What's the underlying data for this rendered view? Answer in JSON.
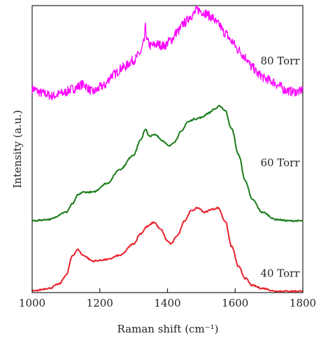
{
  "chart_data": {
    "type": "line",
    "xlabel": "Raman shift (cm⁻¹)",
    "ylabel": "Intensity (a.u.)",
    "xlim": [
      1000,
      1800
    ],
    "ylim": [
      0,
      100
    ],
    "xticks": [
      1000,
      1200,
      1400,
      1600,
      1800
    ],
    "xtick_labels": [
      "1000",
      "1200",
      "1400",
      "1600",
      "1800"
    ],
    "yticks_shown": false,
    "grid": false,
    "series": [
      {
        "name": "80 Torr",
        "color": "#ff00ff",
        "noisy": true,
        "label_at": [
          1650,
          79.5
        ],
        "x": [
          1000,
          1030,
          1060,
          1090,
          1120,
          1150,
          1180,
          1210,
          1240,
          1270,
          1300,
          1320,
          1330,
          1335,
          1340,
          1350,
          1370,
          1390,
          1410,
          1430,
          1450,
          1470,
          1490,
          1510,
          1530,
          1550,
          1570,
          1590,
          1610,
          1630,
          1650,
          1670,
          1690,
          1710,
          1730,
          1750,
          1770,
          1790,
          1800
        ],
        "y": [
          71,
          69.5,
          68.5,
          69.5,
          71,
          72.5,
          70,
          72,
          76,
          78.5,
          81,
          83.5,
          87,
          92.5,
          87.5,
          86,
          86.5,
          86,
          88,
          91,
          94,
          96.5,
          98.5,
          97.5,
          96,
          93.5,
          90.5,
          87.5,
          84.5,
          82,
          78.5,
          76,
          74.5,
          73.5,
          72,
          70.5,
          70,
          70,
          71
        ]
      },
      {
        "name": "60 Torr",
        "color": "#1a7d1a",
        "noisy": false,
        "label_at": [
          1650,
          44
        ],
        "x": [
          1000,
          1050,
          1100,
          1120,
          1135,
          1150,
          1180,
          1220,
          1260,
          1300,
          1320,
          1335,
          1345,
          1365,
          1385,
          1405,
          1420,
          1440,
          1460,
          1480,
          1500,
          1520,
          1540,
          1555,
          1570,
          1590,
          1610,
          1630,
          1650,
          1680,
          1720,
          1760,
          1800
        ],
        "y": [
          25,
          25.5,
          28,
          31,
          34,
          35,
          35,
          38,
          43,
          48,
          53,
          57,
          54.5,
          55,
          53,
          51,
          52.5,
          56,
          59.5,
          60.5,
          61,
          62.5,
          64,
          65,
          63.5,
          57,
          48,
          39,
          32.5,
          28,
          25.5,
          25,
          25
        ]
      },
      {
        "name": "40 Torr",
        "color": "#e8212b",
        "noisy": false,
        "label_at": [
          1650,
          5.5
        ],
        "x": [
          1000,
          1050,
          1080,
          1100,
          1120,
          1135,
          1150,
          1180,
          1220,
          1260,
          1300,
          1320,
          1340,
          1360,
          1380,
          1400,
          1410,
          1430,
          1450,
          1470,
          1490,
          1510,
          1530,
          1550,
          1570,
          1590,
          1610,
          1630,
          1650,
          1680,
          1720,
          1760,
          1800
        ],
        "y": [
          0.5,
          1.5,
          3,
          6,
          13,
          15,
          13,
          11,
          11.5,
          13,
          17,
          20.5,
          23,
          24.5,
          22,
          18,
          17,
          20,
          25,
          28.5,
          29.5,
          28,
          29,
          29.5,
          25,
          16,
          9,
          5,
          2.5,
          1.5,
          0.5,
          0.5,
          0.5
        ]
      }
    ]
  }
}
